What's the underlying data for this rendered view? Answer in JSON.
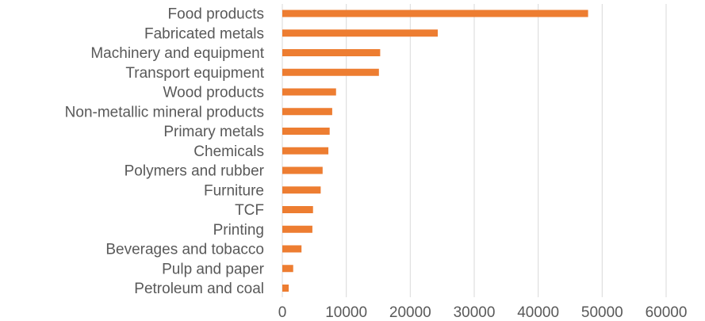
{
  "chart_data": {
    "type": "bar",
    "orientation": "horizontal",
    "title": "",
    "xlabel": "",
    "ylabel": "",
    "categories": [
      "Food products",
      "Fabricated metals",
      "Machinery and equipment",
      "Transport equipment",
      "Wood products",
      "Non-metallic mineral products",
      "Primary metals",
      "Chemicals",
      "Polymers and rubber",
      "Furniture",
      "TCF",
      "Printing",
      "Beverages and tobacco",
      "Pulp and paper",
      "Petroleum and coal"
    ],
    "values": [
      47800,
      24300,
      15300,
      15100,
      8400,
      7800,
      7400,
      7200,
      6300,
      6000,
      4800,
      4700,
      3000,
      1700,
      1000
    ],
    "xlim": [
      0,
      60000
    ],
    "xticks": [
      "0",
      "10000",
      "20000",
      "30000",
      "40000",
      "50000",
      "60000"
    ],
    "grid": "vertical",
    "bar_color": "#ED7D31",
    "grid_color": "#D9D9D9",
    "label_color": "#595959"
  }
}
